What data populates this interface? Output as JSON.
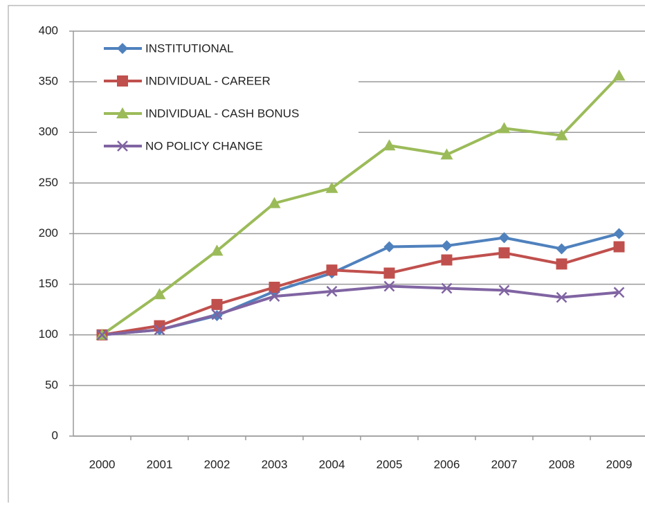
{
  "chart_data": {
    "type": "line",
    "categories": [
      "2000",
      "2001",
      "2002",
      "2003",
      "2004",
      "2005",
      "2006",
      "2007",
      "2008",
      "2009"
    ],
    "series": [
      {
        "name": "INSTITUTIONAL",
        "color": "#4f81bd",
        "marker": "diamond",
        "values": [
          100,
          105,
          119,
          143,
          161,
          187,
          188,
          196,
          185,
          200
        ]
      },
      {
        "name": "INDIVIDUAL - CAREER",
        "color": "#c0504d",
        "marker": "square",
        "values": [
          100,
          109,
          130,
          147,
          164,
          161,
          174,
          181,
          170,
          187
        ]
      },
      {
        "name": "INDIVIDUAL - CASH BONUS",
        "color": "#9bbb59",
        "marker": "triangle",
        "values": [
          100,
          140,
          183,
          230,
          245,
          287,
          278,
          304,
          297,
          356
        ]
      },
      {
        "name": "NO POLICY CHANGE",
        "color": "#8064a2",
        "marker": "x",
        "values": [
          100,
          105,
          120,
          138,
          143,
          148,
          146,
          144,
          137,
          142
        ]
      }
    ],
    "ylim": [
      0,
      400
    ],
    "yticks": [
      0,
      50,
      100,
      150,
      200,
      250,
      300,
      350,
      400
    ],
    "grid": true,
    "legend": "top-left"
  }
}
